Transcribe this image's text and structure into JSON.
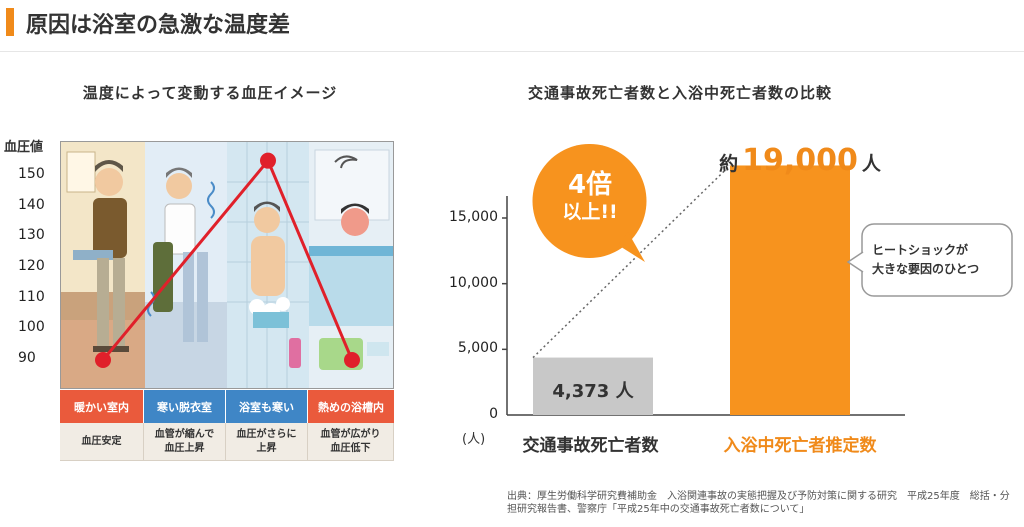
{
  "header": {
    "title": "原因は浴室の急激な温度差"
  },
  "left_chart": {
    "title": "温度によって変動する血圧イメージ",
    "y_label": "血圧値",
    "scenes": [
      {
        "label": "暖かい室内",
        "note": "血圧安定",
        "bp": 90,
        "color": "#ea5a3c"
      },
      {
        "label": "寒い脱衣室",
        "note": "血管が縮んで\n血圧上昇",
        "bp": null,
        "color": "#3f86c6"
      },
      {
        "label": "浴室も寒い",
        "note": "血圧がさらに\n上昇",
        "bp": 155,
        "color": "#3f86c6"
      },
      {
        "label": "熱めの浴槽内",
        "note": "血管が広がり\n血圧低下",
        "bp": 90,
        "color": "#ea5a3c"
      }
    ]
  },
  "right_chart": {
    "title": "交通事故死亡者数と入浴中死亡者数の比較",
    "badge_line1": "4倍",
    "badge_line2": "以上!!",
    "callout": "ヒートショックが\n大きな要因のひとつ",
    "big_label_prefix": "約",
    "big_label_value": "19,000",
    "big_label_suffix": "人",
    "small_label": "4,373 人",
    "unit": "(人)"
  },
  "chart_data": [
    {
      "type": "line",
      "title": "温度によって変動する血圧イメージ",
      "ylabel": "血圧値",
      "y_ticks": [
        150,
        140,
        130,
        120,
        110,
        100,
        90
      ],
      "ylim": [
        85,
        155
      ],
      "categories": [
        "暖かい室内",
        "寒い脱衣室",
        "浴室も寒い",
        "熱めの浴槽内"
      ],
      "points": [
        {
          "category": "暖かい室内",
          "value": 90
        },
        {
          "category": "浴室も寒い",
          "value": 155
        },
        {
          "category": "熱めの浴槽内",
          "value": 90
        }
      ]
    },
    {
      "type": "bar",
      "title": "交通事故死亡者数と入浴中死亡者数の比較",
      "categories": [
        "交通事故死亡者数",
        "入浴中死亡者推定数"
      ],
      "values": [
        4373,
        19000
      ],
      "colors": [
        "#c8c8c8",
        "#f7931e"
      ],
      "y_ticks": [
        0,
        5000,
        10000,
        15000
      ],
      "y_tick_labels": [
        "0",
        "5,000",
        "10,000",
        "15,000"
      ],
      "ylim": [
        0,
        19000
      ],
      "ylabel": "(人)"
    }
  ],
  "source": "出典：厚生労働科学研究費補助金　入浴関連事故の実態把握及び予防対策に関する研究　平成25年度　総括・分担研究報告書、警察庁「平成25年中の交通事故死亡者数について」"
}
